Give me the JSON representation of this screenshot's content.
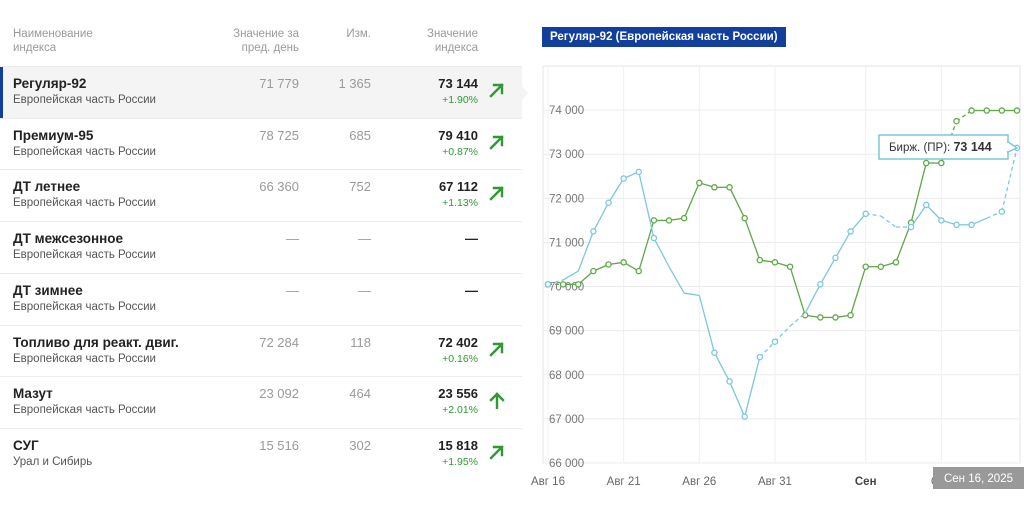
{
  "table": {
    "headers": {
      "name": [
        "Наименование",
        "индекса"
      ],
      "prev": [
        "Значение за",
        "пред. день"
      ],
      "change": [
        "Изм."
      ],
      "value": [
        "Значение",
        "индекса"
      ]
    },
    "rows": [
      {
        "name": "Регуляр-92",
        "region": "Европейская часть России",
        "prev": "71 779",
        "change": "1 365",
        "value": "73 144",
        "pct": "+1.90%",
        "arrow": "arrow-up-right-icon",
        "active": true
      },
      {
        "name": "Премиум-95",
        "region": "Европейская часть России",
        "prev": "78 725",
        "change": "685",
        "value": "79 410",
        "pct": "+0.87%",
        "arrow": "arrow-up-right-icon",
        "active": false
      },
      {
        "name": "ДТ летнее",
        "region": "Европейская часть России",
        "prev": "66 360",
        "change": "752",
        "value": "67 112",
        "pct": "+1.13%",
        "arrow": "arrow-up-right-icon",
        "active": false
      },
      {
        "name": "ДТ межсезонное",
        "region": "Европейская часть России",
        "prev": "—",
        "change": "—",
        "value": "—",
        "pct": "",
        "arrow": "",
        "active": false
      },
      {
        "name": "ДТ зимнее",
        "region": "Европейская часть России",
        "prev": "—",
        "change": "—",
        "value": "—",
        "pct": "",
        "arrow": "",
        "active": false
      },
      {
        "name": "Топливо для реакт. двиг.",
        "region": "Европейская часть России",
        "prev": "72 284",
        "change": "118",
        "value": "72 402",
        "pct": "+0.16%",
        "arrow": "arrow-up-right-icon",
        "active": false
      },
      {
        "name": "Мазут",
        "region": "Европейская часть России",
        "prev": "23 092",
        "change": "464",
        "value": "23 556",
        "pct": "+2.01%",
        "arrow": "arrow-up-icon",
        "active": false
      },
      {
        "name": "СУГ",
        "region": "Урал и Сибирь",
        "prev": "15 516",
        "change": "302",
        "value": "15 818",
        "pct": "+1.95%",
        "arrow": "arrow-up-right-icon",
        "active": false
      }
    ]
  },
  "colors": {
    "accent": "#123f9c",
    "up": "#2f9a33",
    "green_series": "#5da848",
    "blue_series": "#7cc6e0"
  },
  "chart_data": {
    "type": "line",
    "title": "Регуляр-92 (Европейская часть России)",
    "ylim": [
      66000,
      75000
    ],
    "yticks": [
      "66 000",
      "67 000",
      "68 000",
      "69 000",
      "70 000",
      "71 000",
      "72 000",
      "73 000",
      "74 000"
    ],
    "xticks": [
      "Авг 16",
      "Авг 21",
      "Авг 26",
      "Авг 31",
      "Сен",
      "Сен"
    ],
    "xtick_bold": [
      false,
      false,
      false,
      false,
      true,
      false
    ],
    "grid": true,
    "x": [
      "Авг 16",
      "Авг 17",
      "Авг 18",
      "Авг 19",
      "Авг 20",
      "Авг 21",
      "Авг 22",
      "Авг 23",
      "Авг 24",
      "Авг 25",
      "Авг 26",
      "Авг 27",
      "Авг 28",
      "Авг 29",
      "Авг 30",
      "Авг 31",
      "Сен 1",
      "Сен 2",
      "Сен 3",
      "Сен 4",
      "Сен 5",
      "Сен 6",
      "Сен 7",
      "Сен 8",
      "Сен 9",
      "Сен 10",
      "Сен 11",
      "Сен 12",
      "Сен 13",
      "Сен 14",
      "Сен 15",
      "Сен 16"
    ],
    "series": [
      {
        "name": "Green",
        "color": "#5da848",
        "values": [
          70050,
          70050,
          70050,
          70350,
          70500,
          70550,
          70350,
          71500,
          71500,
          71550,
          72350,
          72250,
          72250,
          71550,
          70600,
          70550,
          70450,
          69350,
          69300,
          69300,
          69350,
          70450,
          70450,
          70550,
          71450,
          72800,
          72800,
          73750,
          73990,
          73990,
          73990,
          73990
        ],
        "dashed_segments": [
          [
            0,
            1
          ],
          [
            26,
            27
          ],
          [
            27,
            28
          ]
        ]
      },
      {
        "name": "Birzh (PR)",
        "color": "#7cc6e0",
        "values": [
          70050,
          70150,
          70350,
          71250,
          71900,
          72450,
          72600,
          71100,
          70450,
          69850,
          69800,
          68500,
          67850,
          67050,
          68400,
          68750,
          69100,
          69400,
          70050,
          70650,
          71250,
          71650,
          71600,
          71350,
          71350,
          71850,
          71500,
          71400,
          71400,
          71550,
          71700,
          73144
        ],
        "dashed_segments": [
          [
            0,
            1
          ],
          [
            14,
            15
          ],
          [
            15,
            16
          ],
          [
            16,
            17
          ],
          [
            21,
            22
          ],
          [
            22,
            23
          ],
          [
            23,
            24
          ],
          [
            29,
            30
          ],
          [
            30,
            31
          ]
        ],
        "hidden_points": [
          1,
          2,
          8,
          9,
          10,
          16,
          17,
          22,
          23,
          29
        ]
      }
    ],
    "tooltip": {
      "label": "Бирж. (ПР):",
      "value": "73 144"
    },
    "date_badge": "Сен 16, 2025"
  }
}
